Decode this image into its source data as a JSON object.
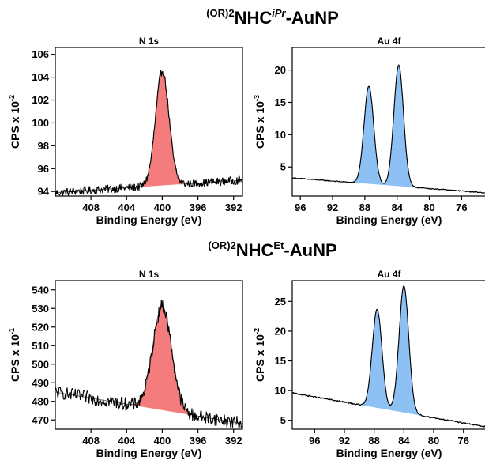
{
  "titles": {
    "top": {
      "pre": "(OR)2",
      "main": "NHC",
      "sup": "iPr",
      "post": "-AuNP"
    },
    "bottom": {
      "pre": "(OR)2",
      "main": "NHC",
      "sup": "Et",
      "post": "-AuNP"
    }
  },
  "chart_data": [
    {
      "type": "line",
      "title": "N 1s",
      "xlabel": "Binding Energy (eV)",
      "ylabel": "CPS x 10",
      "ylabel_exp": "-2",
      "xlim": [
        412,
        391
      ],
      "ylim": [
        93.6,
        106.6
      ],
      "xticks": [
        408,
        404,
        400,
        396,
        392
      ],
      "yticks": [
        94,
        96,
        98,
        100,
        102,
        104,
        106
      ],
      "background": {
        "start": [
          412,
          93.9
        ],
        "end": [
          391,
          95.0
        ]
      },
      "peaks": [
        {
          "center": 400.0,
          "height": 10.0,
          "sigma": 0.75
        }
      ],
      "noise": 0.35,
      "fill_color": "#f47c7c",
      "line_color": "#000000"
    },
    {
      "type": "line",
      "title": "Au 4f",
      "xlabel": "Binding Energy (eV)",
      "ylabel": "CPS x 10",
      "ylabel_exp": "-3",
      "xlim": [
        97,
        73
      ],
      "ylim": [
        0.5,
        23.5
      ],
      "xticks": [
        96,
        92,
        88,
        84,
        80,
        76
      ],
      "yticks": [
        5,
        10,
        15,
        20
      ],
      "background": {
        "start": [
          97,
          3.3
        ],
        "end": [
          73,
          1.0
        ]
      },
      "peaks": [
        {
          "center": 87.5,
          "height": 15.1,
          "sigma": 0.6
        },
        {
          "center": 83.8,
          "height": 18.7,
          "sigma": 0.6
        }
      ],
      "noise": 0.08,
      "fill_color": "#8dc1f3",
      "line_color": "#000000"
    },
    {
      "type": "line",
      "title": "N 1s",
      "xlabel": "Binding Energy (eV)",
      "ylabel": "CPS x 10",
      "ylabel_exp": "-1",
      "xlim": [
        412,
        391
      ],
      "ylim": [
        465,
        545
      ],
      "xticks": [
        408,
        404,
        400,
        396,
        392
      ],
      "yticks": [
        470,
        480,
        490,
        500,
        510,
        520,
        530,
        540
      ],
      "background": {
        "start": [
          412,
          485
        ],
        "end": [
          391,
          468
        ]
      },
      "peaks": [
        {
          "center": 400.0,
          "height": 56,
          "sigma": 1.05
        }
      ],
      "noise": 3.5,
      "fill_color": "#f47c7c",
      "line_color": "#000000"
    },
    {
      "type": "line",
      "title": "Au 4f",
      "xlabel": "Binding Energy (eV)",
      "ylabel": "CPS x 10",
      "ylabel_exp": "-2",
      "xlim": [
        99,
        73
      ],
      "ylim": [
        3.5,
        28.5
      ],
      "xticks": [
        96,
        92,
        88,
        84,
        80,
        76
      ],
      "yticks": [
        5,
        10,
        15,
        20,
        25
      ],
      "background": {
        "start": [
          99,
          9.6
        ],
        "end": [
          73,
          3.9
        ]
      },
      "peaks": [
        {
          "center": 87.6,
          "height": 16.5,
          "sigma": 0.65
        },
        {
          "center": 84.0,
          "height": 21.3,
          "sigma": 0.65
        }
      ],
      "noise": 0.12,
      "fill_color": "#8dc1f3",
      "line_color": "#000000"
    }
  ]
}
